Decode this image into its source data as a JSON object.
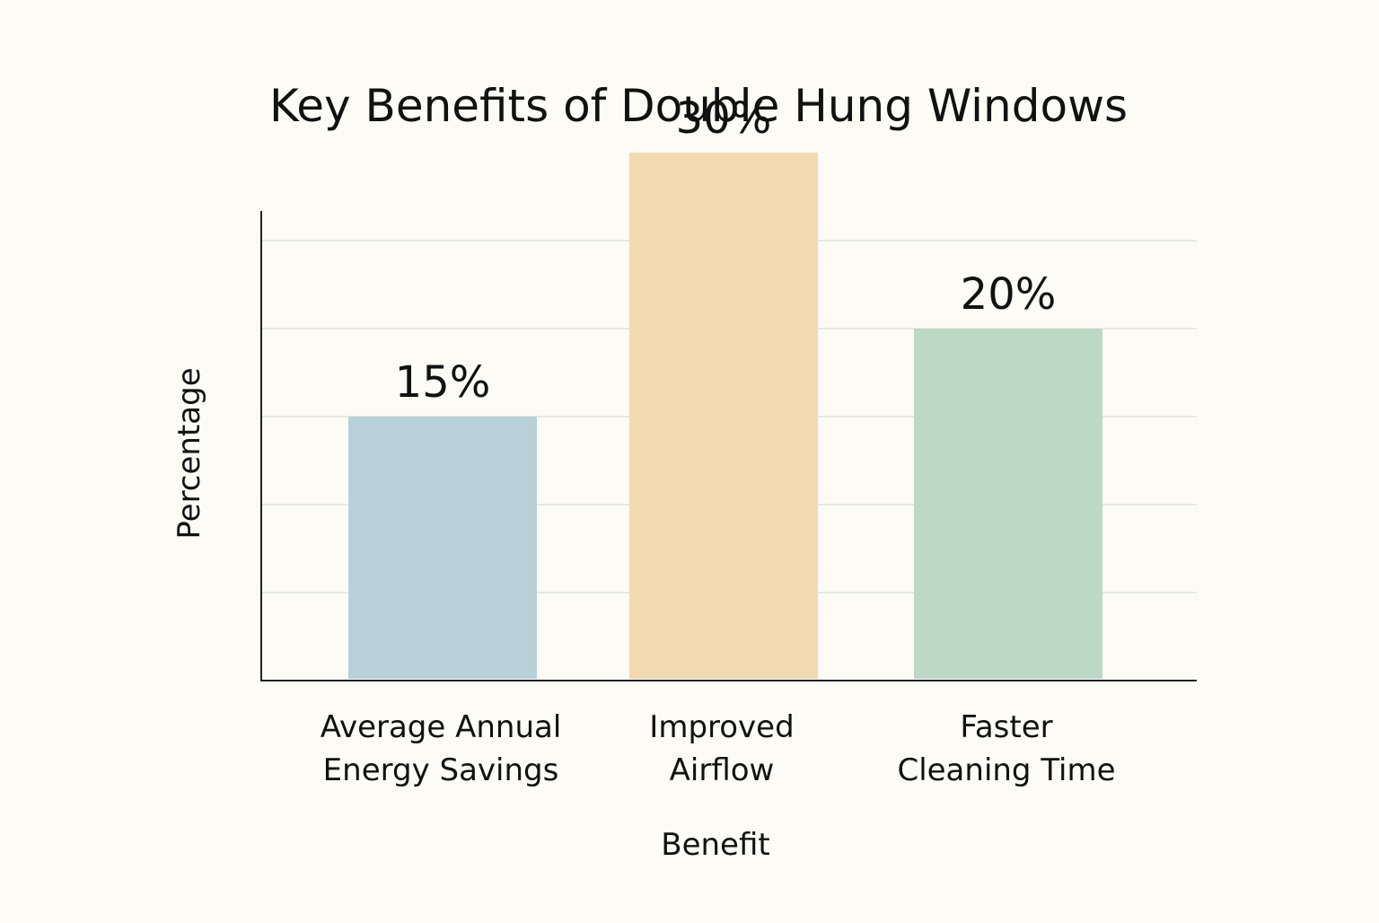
{
  "chart_data": {
    "type": "bar",
    "title": "Key Benefits of Double Hung Windows",
    "xlabel": "Benefit",
    "ylabel": "Percentage",
    "categories": [
      [
        "Average Annual",
        "Energy Savings"
      ],
      [
        "Improved",
        "Airflow"
      ],
      [
        "Faster",
        "Cleaning Time"
      ]
    ],
    "values": [
      15,
      30,
      20
    ],
    "data_labels": [
      "15%",
      "30%",
      "20%"
    ],
    "ylim": [
      0,
      40
    ],
    "y_tick_labels_shown": false,
    "grid": true,
    "legend": "none",
    "colors": [
      "#b8d0d8",
      "#f1dab0",
      "#bcd9c6"
    ],
    "gridline_color": "#e2e2dc",
    "axis_color": "#222222"
  }
}
